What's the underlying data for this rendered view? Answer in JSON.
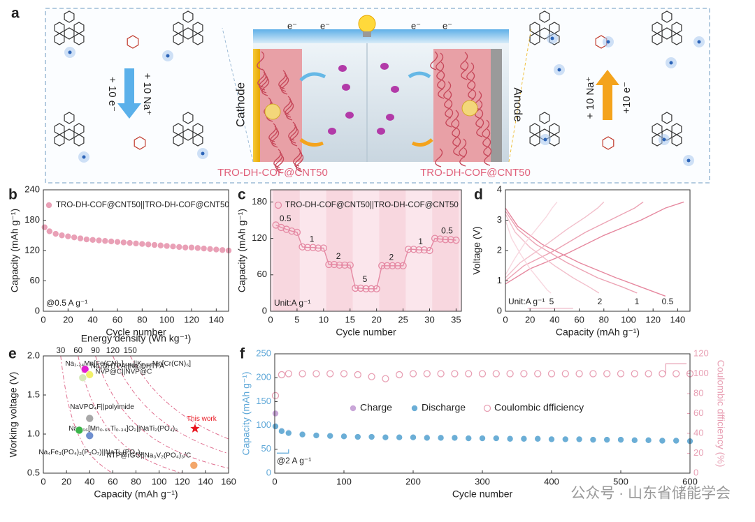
{
  "panel_labels": [
    "a",
    "b",
    "c",
    "d",
    "e",
    "f"
  ],
  "schematic": {
    "cathode": "Cathode",
    "anode": "Anode",
    "cathode_material": "TRO-DH-COF@CNT50",
    "anode_material": "TRO-DH-COF@CNT50",
    "left_na": "+ 10 Na⁺",
    "left_e": "+ 10 e⁻",
    "right_na": "+ 10 Na⁺",
    "right_e": "+10 e⁻",
    "electrons": [
      "e⁻",
      "e⁻",
      "e⁻",
      "e⁻"
    ]
  },
  "watermark": "公众号 · 山东省储能学会",
  "chart_data": [
    {
      "type": "scatter",
      "xlabel": "Cycle number",
      "ylabel": "Capacity (mAh g⁻¹)",
      "xlim": [
        0,
        150
      ],
      "ylim": [
        0,
        240
      ],
      "xticks": [
        0,
        20,
        40,
        60,
        80,
        100,
        120,
        140
      ],
      "yticks": [
        0,
        60,
        120,
        180,
        240
      ],
      "x": [
        1,
        5,
        10,
        15,
        20,
        25,
        30,
        35,
        40,
        45,
        50,
        55,
        60,
        65,
        70,
        75,
        80,
        85,
        90,
        95,
        100,
        105,
        110,
        115,
        120,
        125,
        130,
        135,
        140,
        145,
        150
      ],
      "series": [
        {
          "name": "TRO-DH-COF@CNT50||TRO-DH-COF@CNT50",
          "color": "#e9a0b6",
          "marker": "circle",
          "connect": true,
          "values": [
            166,
            158,
            153,
            150,
            148,
            146,
            144,
            142,
            141,
            140,
            139,
            138,
            137,
            136,
            135,
            134,
            133,
            132,
            131,
            130,
            129,
            128,
            127,
            126,
            126,
            125,
            124,
            123,
            122,
            121,
            120
          ]
        }
      ],
      "annotations": [
        "@0.5 A g⁻¹"
      ]
    },
    {
      "type": "scatter",
      "xlabel": "Cycle number",
      "ylabel": "Capacity (mAh g⁻¹)",
      "xlim": [
        0,
        36
      ],
      "ylim": [
        0,
        200
      ],
      "xticks": [
        0,
        5,
        10,
        15,
        20,
        25,
        30,
        35
      ],
      "yticks": [
        0,
        60,
        120,
        180
      ],
      "x": [
        1,
        2,
        3,
        4,
        5,
        6,
        7,
        8,
        9,
        10,
        11,
        12,
        13,
        14,
        15,
        16,
        17,
        18,
        19,
        20,
        21,
        22,
        23,
        24,
        25,
        26,
        27,
        28,
        29,
        30,
        31,
        32,
        33,
        34,
        35
      ],
      "series": [
        {
          "name": "TRO-DH-COF@CNT50||TRO-DH-COF@CNT50",
          "color": "#e58aa4",
          "marker": "open-circle",
          "connect": true,
          "values": [
            142,
            138,
            135,
            132,
            130,
            106,
            105,
            105,
            104,
            104,
            77,
            77,
            76,
            76,
            76,
            38,
            38,
            37,
            37,
            37,
            75,
            75,
            75,
            75,
            75,
            102,
            102,
            101,
            101,
            100,
            120,
            119,
            118,
            118,
            117
          ]
        }
      ],
      "annotations": [
        "0.5",
        "1",
        "2",
        "5",
        "2",
        "1",
        "0.5",
        "Unit:A g⁻¹"
      ]
    },
    {
      "type": "line",
      "xlabel": "Capacity (mAh g⁻¹)",
      "ylabel": "Voltage (V)",
      "xlim": [
        0,
        150
      ],
      "ylim": [
        0,
        4
      ],
      "xticks": [
        0,
        20,
        40,
        60,
        80,
        100,
        120,
        140
      ],
      "yticks": [
        0,
        1,
        2,
        3,
        4
      ],
      "series": [
        {
          "color": "#e6889f",
          "x": [
            0,
            10,
            30,
            60,
            90,
            110,
            130
          ],
          "values": [
            3.4,
            2.8,
            2.2,
            1.6,
            1.1,
            0.8,
            0.5
          ]
        },
        {
          "color": "#e6889f",
          "x": [
            0,
            20,
            50,
            80,
            110,
            130,
            145
          ],
          "values": [
            0.9,
            1.4,
            1.9,
            2.5,
            3.0,
            3.4,
            3.6
          ]
        },
        {
          "color": "#eca3b4",
          "x": [
            0,
            10,
            25,
            50,
            75,
            95,
            107
          ],
          "values": [
            3.3,
            2.7,
            2.2,
            1.6,
            1.1,
            0.8,
            0.6
          ]
        },
        {
          "color": "#eca3b4",
          "x": [
            0,
            15,
            40,
            65,
            90,
            105,
            112
          ],
          "values": [
            1.0,
            1.5,
            2.0,
            2.6,
            3.1,
            3.4,
            3.6
          ]
        },
        {
          "color": "#f2bfcb",
          "x": [
            0,
            8,
            20,
            40,
            55,
            68,
            76
          ],
          "values": [
            3.2,
            2.6,
            2.1,
            1.5,
            1.1,
            0.8,
            0.6
          ]
        },
        {
          "color": "#f2bfcb",
          "x": [
            0,
            12,
            30,
            50,
            65,
            75,
            80
          ],
          "values": [
            1.1,
            1.6,
            2.1,
            2.7,
            3.1,
            3.4,
            3.6
          ]
        },
        {
          "color": "#f8d8e0",
          "x": [
            0,
            5,
            12,
            20,
            28,
            34,
            37
          ],
          "values": [
            3.0,
            2.4,
            1.9,
            1.4,
            1.0,
            0.7,
            0.6
          ]
        },
        {
          "color": "#f8d8e0",
          "x": [
            0,
            7,
            15,
            25,
            33,
            38,
            42
          ],
          "values": [
            1.2,
            1.7,
            2.2,
            2.7,
            3.1,
            3.4,
            3.6
          ]
        }
      ],
      "annotations": [
        "Unit:A g⁻¹",
        "5",
        "2",
        "1",
        "0.5"
      ]
    },
    {
      "type": "scatter",
      "xlabel": "Capacity (mAh g⁻¹)",
      "ylabel": "Working voltage (V)",
      "x2label": "Energy density (Wh kg⁻¹)",
      "xlim": [
        0,
        160
      ],
      "ylim": [
        0.5,
        2.0
      ],
      "xticks": [
        0,
        20,
        40,
        60,
        80,
        100,
        120,
        140,
        160
      ],
      "yticks": [
        {
          "value": 0.5,
          "label": "0.5"
        },
        {
          "value": 1.0,
          "label": "1.0"
        },
        {
          "value": 1.5,
          "label": "1.5"
        },
        {
          "value": 2.0,
          "label": "2.0"
        }
      ],
      "energy_ticks": [
        30,
        60,
        90,
        120,
        150
      ],
      "points": [
        {
          "label": "This work",
          "x": 131,
          "y": 1.07,
          "color": "#e8141e",
          "marker": "star",
          "label_color": "#e8141e"
        },
        {
          "label": "Na₄DHTPA||Na₄DHTPA",
          "x": 36,
          "y": 1.83,
          "color": "#e020d0",
          "marker": "circle"
        },
        {
          "label": "NVP@C||NVP@C",
          "x": 40,
          "y": 1.76,
          "color": "#f2f06a",
          "marker": "circle"
        },
        {
          "label": "Na₁.₂₄Mn[Fe(CN)₆]₀.₈₁||K₀.₀₅Mn[Cr(CN)₆]",
          "x": 34,
          "y": 1.72,
          "color": "#d6e8b8",
          "marker": "circle"
        },
        {
          "label": "NaVPO₄F||polyimide",
          "x": 40,
          "y": 1.2,
          "color": "#a8a8a8",
          "marker": "circle"
        },
        {
          "label": "Na₀.₆₆[Mn₀.₆₆Ti₀.₃₄]O₂||NaTi₂(PO₄)₃",
          "x": 40,
          "y": 0.98,
          "color": "#6f8fcf",
          "marker": "circle"
        },
        {
          "label": "Na₄Fe₃(PO₄)₂(P₂O₇)||NaTi₂(PO₄)₃",
          "x": 31,
          "y": 1.05,
          "color": "#3cb44a",
          "marker": "circle"
        },
        {
          "label": "NTP@rGO||Na₃V₂(PO₄)₃/C",
          "x": 130,
          "y": 0.6,
          "color": "#f3a66a",
          "marker": "circle"
        }
      ]
    },
    {
      "type": "scatter",
      "xlabel": "Cycle number",
      "ylabel": "Capacity (mAh g⁻¹)",
      "y2label": "Coulombic dfficiency (%)",
      "xlim": [
        0,
        600
      ],
      "ylim": [
        0,
        250
      ],
      "y2lim": [
        0,
        120
      ],
      "xticks": [
        0,
        100,
        200,
        300,
        400,
        500,
        600
      ],
      "yticks": [
        0,
        50,
        100,
        150,
        200,
        250
      ],
      "y2ticks": [
        0,
        20,
        40,
        60,
        80,
        100,
        120
      ],
      "x": [
        1,
        10,
        20,
        40,
        60,
        80,
        100,
        120,
        140,
        160,
        180,
        200,
        220,
        240,
        260,
        280,
        300,
        320,
        340,
        360,
        380,
        400,
        420,
        440,
        460,
        480,
        500,
        520,
        540,
        560,
        580,
        600
      ],
      "series": [
        {
          "name": "Charge",
          "color": "#c9a6d8",
          "marker": "circle",
          "values": [
            125,
            89,
            85,
            82,
            79,
            78,
            77,
            76,
            76,
            75,
            75,
            75,
            75,
            74,
            74,
            73,
            73,
            73,
            72,
            72,
            72,
            71,
            71,
            71,
            70,
            70,
            70,
            69,
            69,
            68,
            68,
            67
          ]
        },
        {
          "name": "Discharge",
          "color": "#6baed6",
          "marker": "circle",
          "values": [
            98,
            88,
            84,
            81,
            79,
            78,
            77,
            76,
            76,
            75,
            75,
            75,
            74,
            74,
            74,
            73,
            73,
            73,
            72,
            72,
            72,
            71,
            71,
            71,
            70,
            70,
            70,
            69,
            69,
            68,
            68,
            67
          ]
        },
        {
          "name": "Coulombic dfficiency",
          "color": "#e8a0b4",
          "marker": "open-circle",
          "axis": "y2",
          "values": [
            78,
            99,
            100,
            100,
            100,
            100,
            100,
            99,
            97,
            95,
            99,
            100,
            100,
            100,
            100,
            100,
            100,
            100,
            100,
            100,
            100,
            100,
            100,
            100,
            100,
            100,
            100,
            100,
            100,
            100,
            100,
            100
          ]
        }
      ],
      "annotations": [
        "@2 A g⁻¹"
      ]
    }
  ]
}
